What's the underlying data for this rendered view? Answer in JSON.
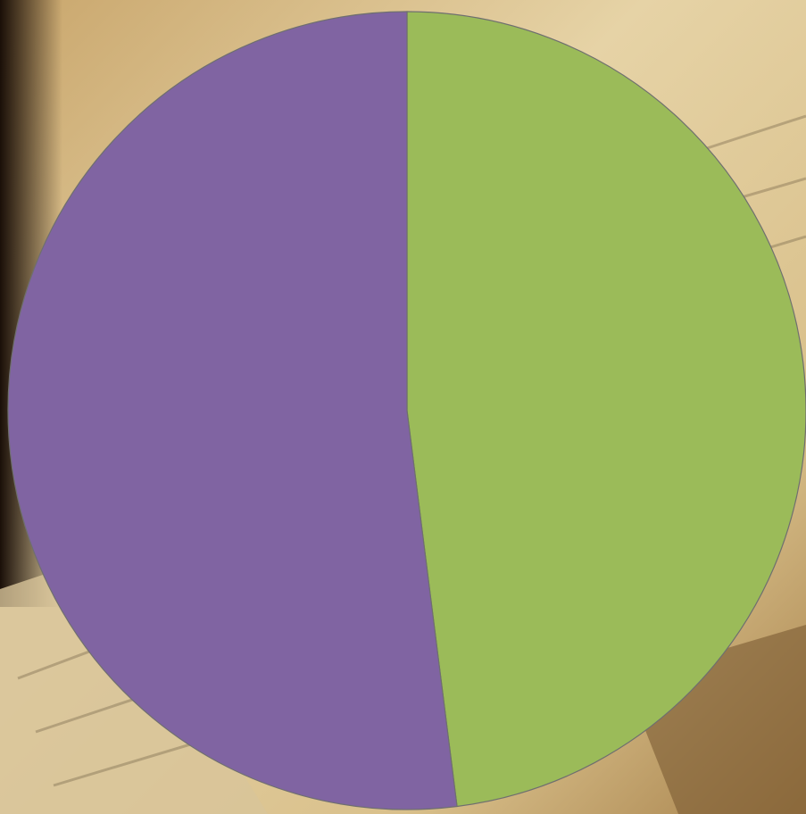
{
  "chart_data": {
    "type": "pie",
    "values": [
      48,
      52
    ],
    "colors": [
      "#9bbb59",
      "#8064a2"
    ],
    "start_angle": 0,
    "direction": "clockwise"
  }
}
